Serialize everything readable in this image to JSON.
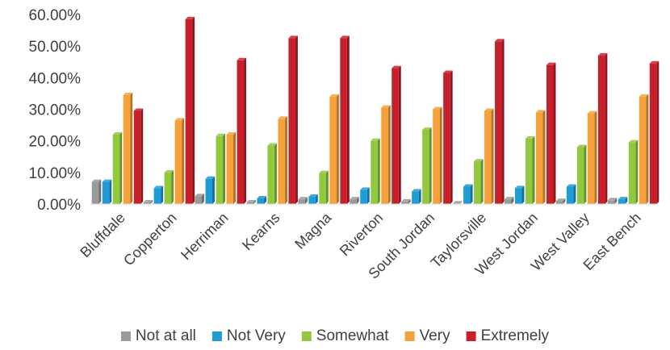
{
  "chart_data": {
    "type": "bar",
    "categories": [
      "Bluffdale",
      "Copperton",
      "Herriman",
      "Kearns",
      "Magna",
      "Riverton",
      "South Jordan",
      "Taylorsville",
      "West Jordan",
      "West Valley",
      "East Bench"
    ],
    "series": [
      {
        "name": "Not at all",
        "color": "#9a9a9a",
        "values": [
          7.0,
          0.5,
          2.5,
          0.5,
          1.5,
          1.5,
          0.8,
          0.2,
          1.5,
          1.0,
          1.2
        ]
      },
      {
        "name": "Not Very",
        "color": "#1f9bd6",
        "values": [
          7.0,
          5.0,
          8.0,
          1.8,
          2.3,
          4.5,
          4.0,
          5.5,
          5.0,
          5.5,
          1.5
        ]
      },
      {
        "name": "Somewhat",
        "color": "#92c83e",
        "values": [
          22.0,
          10.0,
          21.5,
          18.5,
          9.8,
          20.0,
          23.5,
          13.5,
          20.7,
          18.0,
          19.5
        ]
      },
      {
        "name": "Very",
        "color": "#f7a13a",
        "values": [
          34.5,
          26.5,
          22.0,
          27.0,
          34.0,
          30.5,
          30.0,
          29.5,
          29.0,
          28.7,
          34.0
        ]
      },
      {
        "name": "Extremely",
        "color": "#c8202b",
        "values": [
          29.5,
          58.5,
          45.5,
          52.5,
          52.5,
          43.0,
          41.5,
          51.5,
          44.0,
          47.0,
          44.5
        ]
      }
    ],
    "yticks": [
      "0.00%",
      "10.00%",
      "20.00%",
      "30.00%",
      "40.00%",
      "50.00%",
      "60.00%"
    ],
    "ylim": [
      0,
      60
    ],
    "grid": false,
    "legend": "bottom",
    "title": "",
    "xlabel": "",
    "ylabel": ""
  }
}
